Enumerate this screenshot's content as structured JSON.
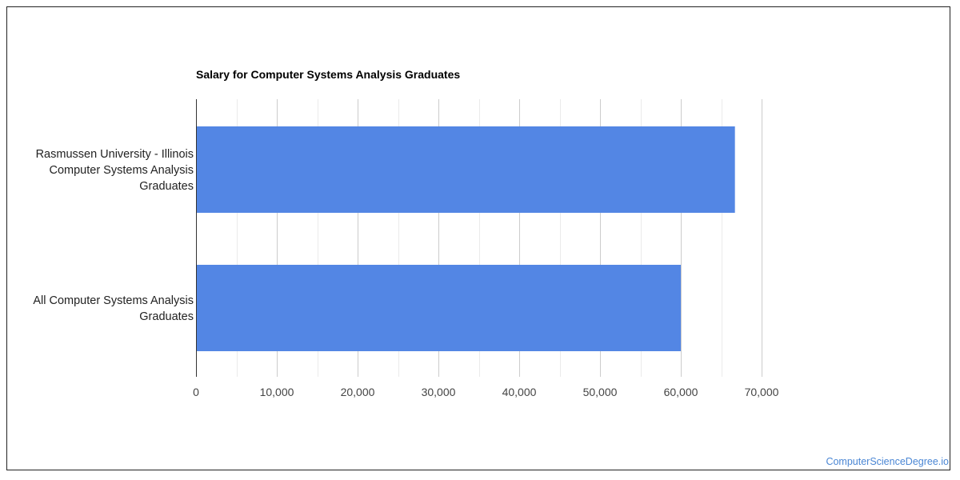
{
  "chart_data": {
    "type": "bar",
    "orientation": "horizontal",
    "title": "Salary for Computer Systems Analysis Graduates",
    "categories": [
      [
        "Rasmussen University - Illinois",
        "Computer Systems Analysis",
        "Graduates"
      ],
      [
        "All Computer Systems Analysis",
        "Graduates"
      ]
    ],
    "values": [
      66700,
      60000
    ],
    "xlim": [
      0,
      70000
    ],
    "x_ticks": [
      0,
      10000,
      20000,
      30000,
      40000,
      50000,
      60000,
      70000
    ],
    "x_tick_labels": [
      "0",
      "10,000",
      "20,000",
      "30,000",
      "40,000",
      "50,000",
      "60,000",
      "70,000"
    ],
    "grid": true,
    "bar_color": "#5386e4",
    "xlabel": "",
    "ylabel": ""
  },
  "watermark": "ComputerScienceDegree.io",
  "colors": {
    "major_grid": "#cccccc",
    "minor_grid": "#ebebeb",
    "axis": "#333333"
  }
}
